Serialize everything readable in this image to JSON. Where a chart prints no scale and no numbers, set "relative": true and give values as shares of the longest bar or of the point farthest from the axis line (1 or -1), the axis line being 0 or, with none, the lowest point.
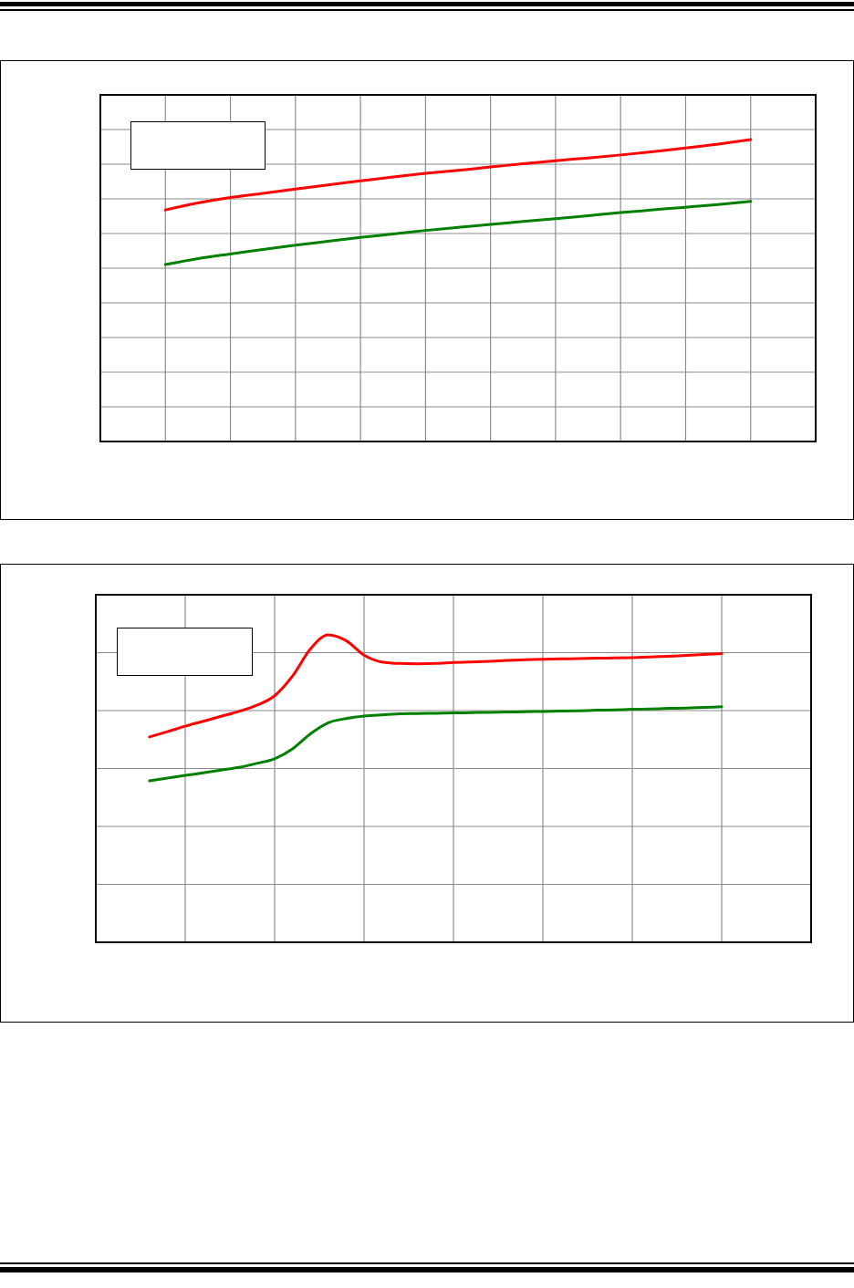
{
  "chart_data": [
    {
      "type": "line",
      "relative": true,
      "grid": true,
      "marker": "none",
      "line_style": "solid",
      "categories": [
        null,
        null,
        null,
        null,
        null,
        null,
        null,
        null,
        null,
        null,
        null,
        null,
        null,
        null,
        null,
        null,
        null,
        null,
        null,
        null,
        null,
        null,
        null
      ],
      "series": [
        {
          "color": "#ff0000",
          "values": [
            null,
            null,
            0.767,
            0.79,
            0.808,
            0.822,
            0.836,
            0.85,
            0.863,
            0.876,
            0.888,
            0.898,
            0.909,
            0.92,
            0.93,
            0.939,
            0.949,
            0.96,
            0.972,
            0.985,
            1,
            null,
            null
          ]
        },
        {
          "color": "#008000",
          "values": [
            null,
            null,
            0.586,
            0.606,
            0.621,
            0.636,
            0.65,
            0.663,
            0.676,
            0.687,
            0.699,
            0.709,
            0.719,
            0.729,
            0.738,
            0.748,
            0.758,
            0.767,
            0.776,
            0.785,
            0.795,
            null,
            null
          ]
        }
      ]
    },
    {
      "type": "line",
      "relative": true,
      "grid": true,
      "marker": "none",
      "line_style": "solid",
      "categories": [
        null,
        null,
        null,
        null,
        null,
        null,
        null,
        null,
        null,
        null,
        null,
        null,
        null,
        null,
        null,
        null,
        null,
        null,
        null,
        null,
        null,
        null,
        null,
        null,
        null,
        null,
        null,
        null,
        null,
        null,
        null,
        null,
        null,
        null,
        null,
        null,
        null,
        null,
        null,
        null,
        null
      ],
      "series": [
        {
          "color": "#ff0000",
          "values": [
            null,
            null,
            null,
            0.668,
            0.685,
            0.703,
            0.719,
            0.735,
            0.751,
            0.771,
            0.802,
            0.866,
            0.954,
            1,
            0.981,
            0.934,
            0.912,
            0.907,
            0.906,
            0.907,
            0.91,
            0.912,
            0.914,
            0.917,
            0.919,
            0.921,
            0.922,
            0.923,
            0.924,
            0.925,
            0.926,
            0.928,
            0.93,
            0.933,
            0.936,
            0.939,
            null,
            null,
            null,
            null,
            null
          ]
        },
        {
          "color": "#008000",
          "values": [
            null,
            null,
            null,
            0.525,
            0.534,
            0.543,
            0.551,
            0.56,
            0.569,
            0.582,
            0.597,
            0.629,
            0.678,
            0.714,
            0.728,
            0.736,
            0.74,
            0.743,
            0.744,
            0.745,
            0.746,
            0.747,
            0.748,
            0.749,
            0.75,
            0.751,
            0.752,
            0.753,
            0.755,
            0.756,
            0.758,
            0.759,
            0.761,
            0.762,
            0.764,
            0.766,
            null,
            null,
            null,
            null,
            null
          ]
        }
      ]
    }
  ]
}
